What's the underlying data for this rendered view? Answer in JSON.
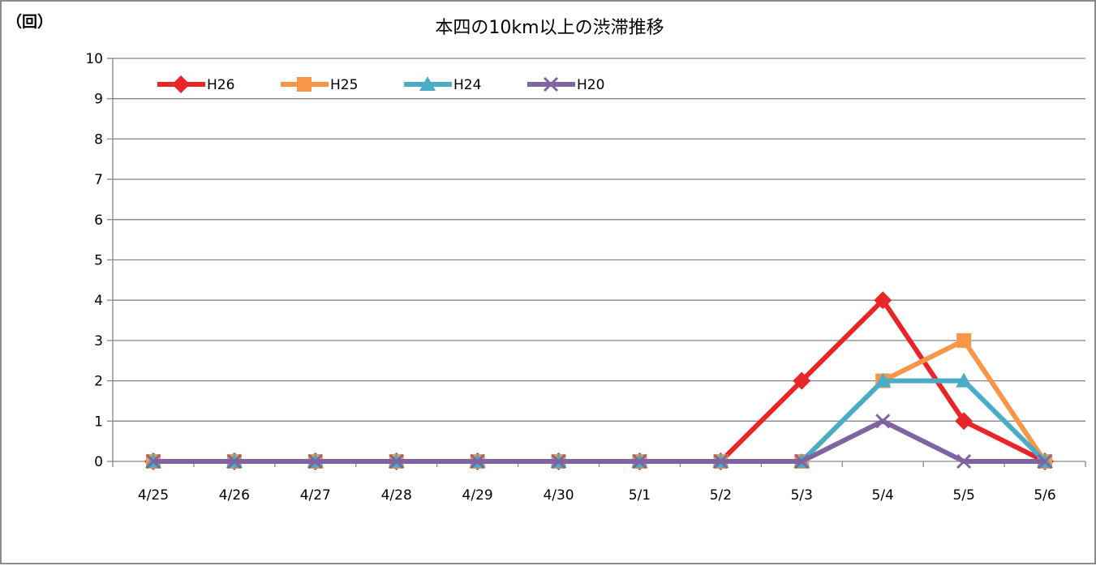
{
  "chart_data": {
    "type": "line",
    "title": "本四の10km以上の渋滞推移",
    "ylabel": "（回）",
    "xlabel": "",
    "categories": [
      "4/25",
      "4/26",
      "4/27",
      "4/28",
      "4/29",
      "4/30",
      "5/1",
      "5/2",
      "5/3",
      "5/4",
      "5/5",
      "5/6"
    ],
    "ylim": [
      0,
      10
    ],
    "yticks": [
      0,
      1,
      2,
      3,
      4,
      5,
      6,
      7,
      8,
      9,
      10
    ],
    "grid": true,
    "legend": "top-left",
    "series": [
      {
        "name": "H26",
        "color": "#e8262a",
        "marker": "diamond",
        "values": [
          0,
          0,
          0,
          0,
          0,
          0,
          0,
          0,
          2,
          4,
          1,
          0
        ]
      },
      {
        "name": "H25",
        "color": "#f79646",
        "marker": "square",
        "values": [
          0,
          0,
          0,
          0,
          0,
          0,
          0,
          0,
          0,
          2,
          3,
          0
        ]
      },
      {
        "name": "H24",
        "color": "#4bacc6",
        "marker": "triangle",
        "values": [
          0,
          0,
          0,
          0,
          0,
          0,
          0,
          0,
          0,
          2,
          2,
          0
        ]
      },
      {
        "name": "H20",
        "color": "#8064a2",
        "marker": "x",
        "values": [
          0,
          0,
          0,
          0,
          0,
          0,
          0,
          0,
          0,
          1,
          0,
          0
        ]
      }
    ]
  }
}
